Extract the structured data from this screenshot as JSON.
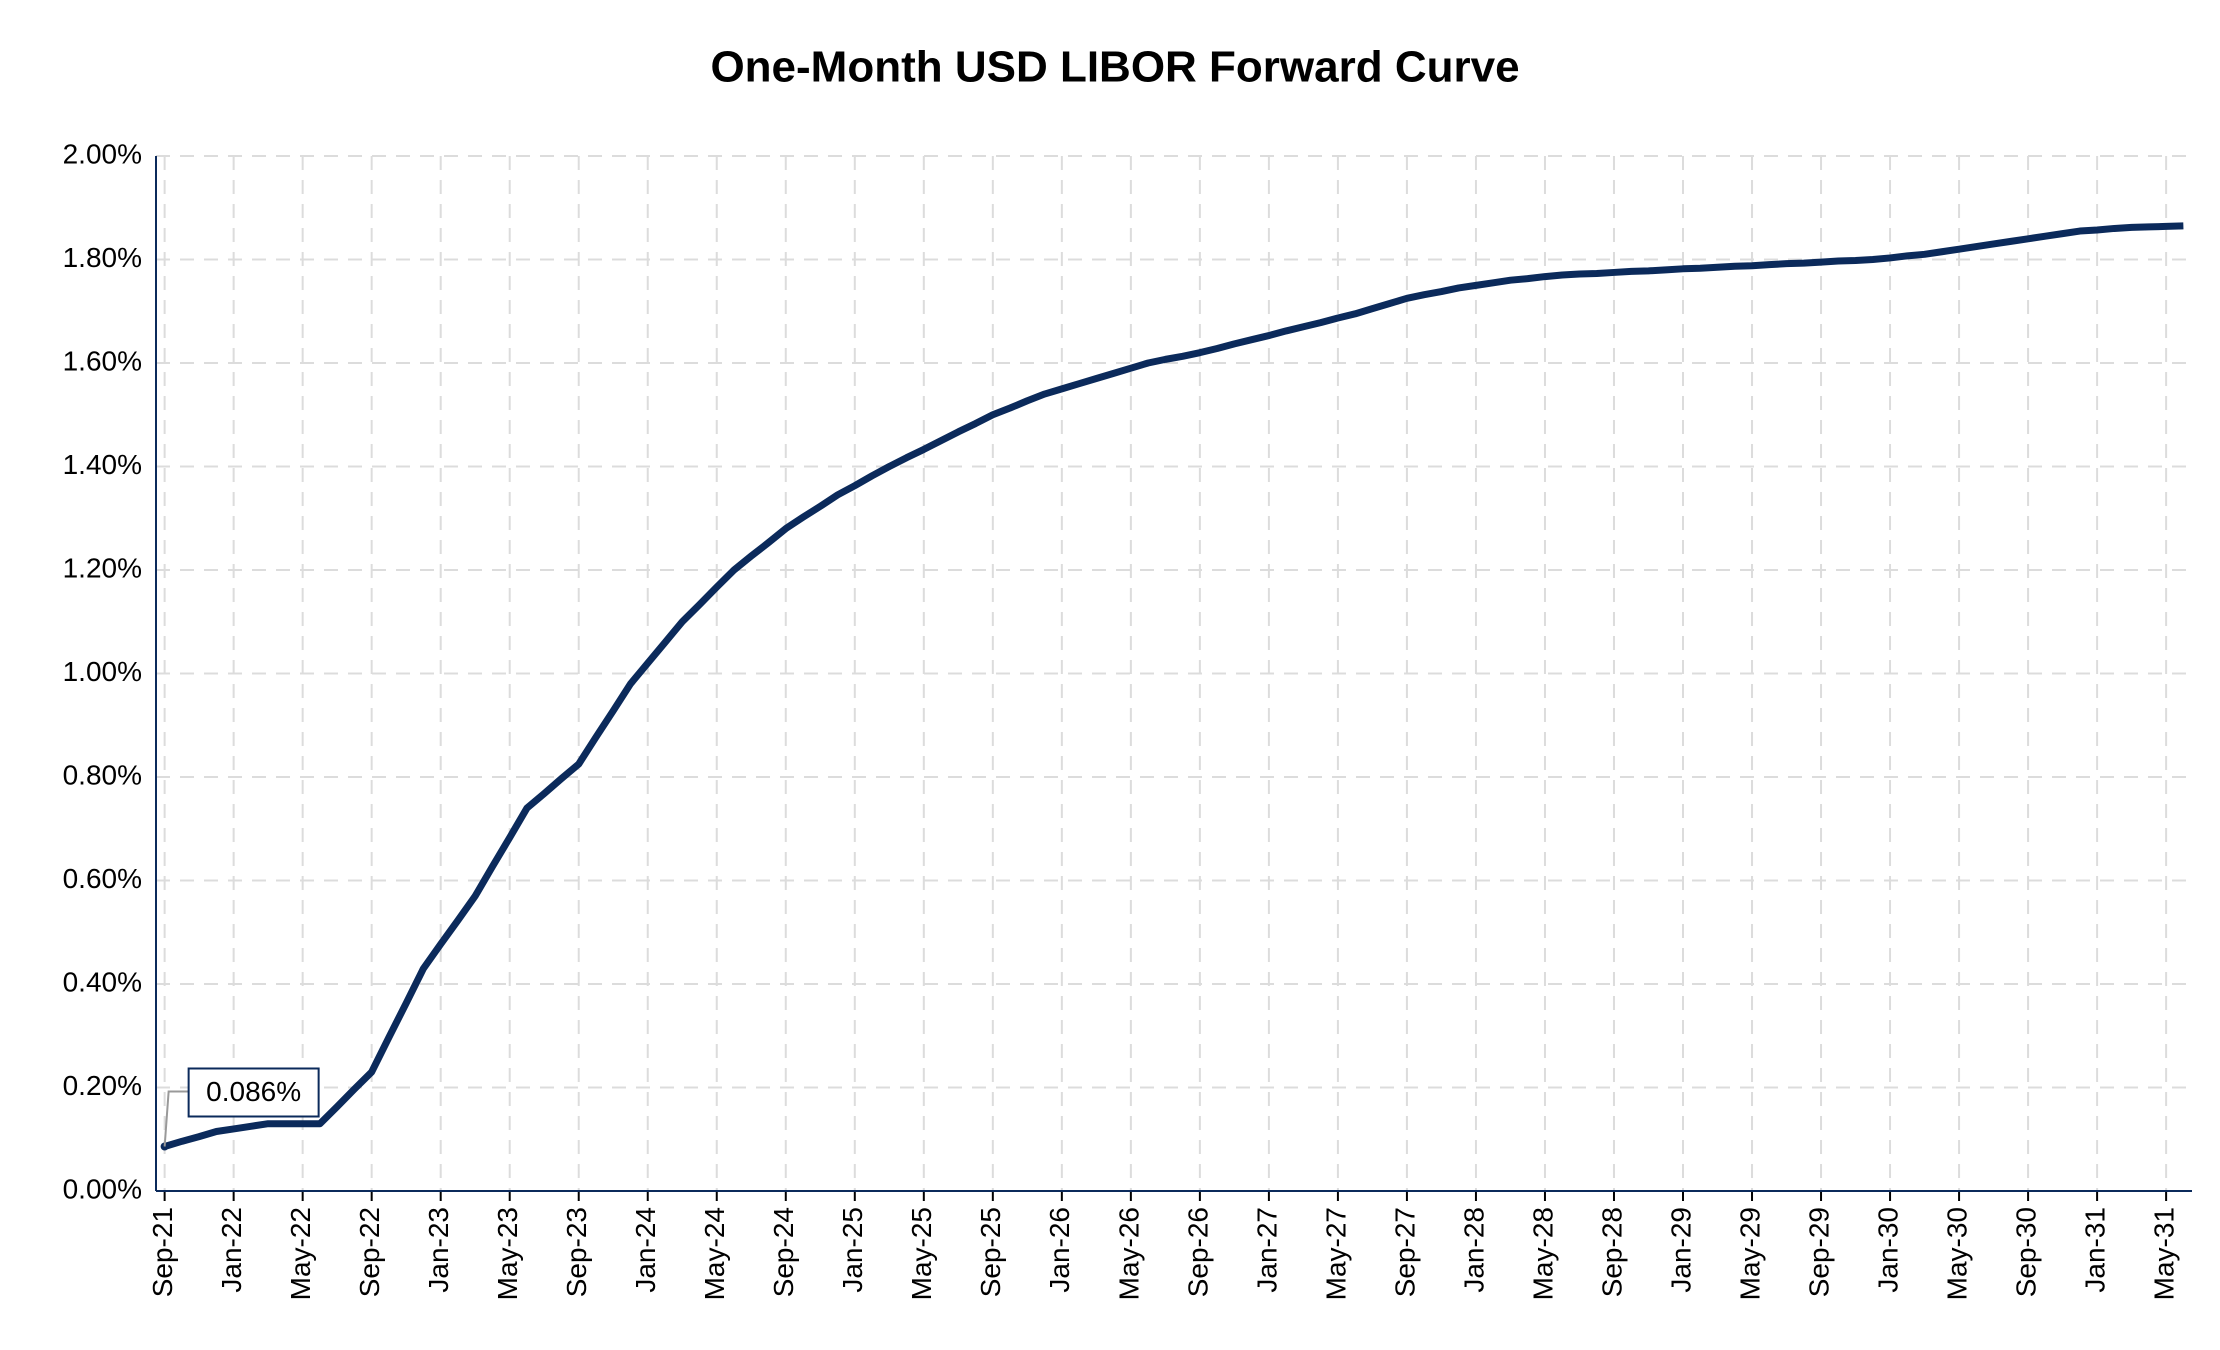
{
  "chart_data": {
    "type": "line",
    "title": "One-Month USD LIBOR Forward Curve",
    "categories": [
      "Sep-21",
      null,
      null,
      null,
      "Jan-22",
      null,
      null,
      null,
      "May-22",
      null,
      null,
      null,
      "Sep-22",
      null,
      null,
      null,
      "Jan-23",
      null,
      null,
      null,
      "May-23",
      null,
      null,
      null,
      "Sep-23",
      null,
      null,
      null,
      "Jan-24",
      null,
      null,
      null,
      "May-24",
      null,
      null,
      null,
      "Sep-24",
      null,
      null,
      null,
      "Jan-25",
      null,
      null,
      null,
      "May-25",
      null,
      null,
      null,
      "Sep-25",
      null,
      null,
      null,
      "Jan-26",
      null,
      null,
      null,
      "May-26",
      null,
      null,
      null,
      "Sep-26",
      null,
      null,
      null,
      "Jan-27",
      null,
      null,
      null,
      "May-27",
      null,
      null,
      null,
      "Sep-27",
      null,
      null,
      null,
      "Jan-28",
      null,
      null,
      null,
      "May-28",
      null,
      null,
      null,
      "Sep-28",
      null,
      null,
      null,
      "Jan-29",
      null,
      null,
      null,
      "May-29",
      null,
      null,
      null,
      "Sep-29",
      null,
      null,
      null,
      "Jan-30",
      null,
      null,
      null,
      "May-30",
      null,
      null,
      null,
      "Sep-30",
      null,
      null,
      null,
      "Jan-31",
      null,
      null,
      null,
      "May-31",
      null
    ],
    "series": [
      {
        "name": "One-Month USD LIBOR",
        "color": "#0b2a5b",
        "values": [
          0.086,
          0.096,
          0.105,
          0.115,
          0.12,
          0.125,
          0.13,
          0.13,
          0.13,
          0.13,
          0.163,
          0.197,
          0.23,
          0.297,
          0.363,
          0.43,
          0.477,
          0.523,
          0.57,
          0.627,
          0.683,
          0.74,
          0.768,
          0.797,
          0.825,
          0.877,
          0.928,
          0.98,
          1.02,
          1.06,
          1.1,
          1.133,
          1.167,
          1.2,
          1.227,
          1.253,
          1.28,
          1.302,
          1.323,
          1.345,
          1.363,
          1.382,
          1.4,
          1.417,
          1.433,
          1.45,
          1.467,
          1.483,
          1.5,
          1.513,
          1.527,
          1.54,
          1.55,
          1.56,
          1.57,
          1.58,
          1.59,
          1.6,
          1.607,
          1.613,
          1.62,
          1.628,
          1.637,
          1.645,
          1.653,
          1.662,
          1.67,
          1.678,
          1.687,
          1.695,
          1.705,
          1.715,
          1.725,
          1.732,
          1.738,
          1.745,
          1.75,
          1.755,
          1.76,
          1.763,
          1.767,
          1.77,
          1.772,
          1.773,
          1.775,
          1.777,
          1.778,
          1.78,
          1.782,
          1.783,
          1.785,
          1.787,
          1.788,
          1.79,
          1.792,
          1.793,
          1.795,
          1.797,
          1.798,
          1.8,
          1.803,
          1.807,
          1.81,
          1.815,
          1.82,
          1.825,
          1.83,
          1.835,
          1.84,
          1.845,
          1.85,
          1.855,
          1.857,
          1.86,
          1.862,
          1.863,
          1.864,
          1.865
        ]
      }
    ],
    "annotation": {
      "text": "0.086%",
      "value": 0.086
    },
    "ylim": [
      0,
      2
    ],
    "yticks": [
      {
        "value": 0,
        "label": "0.00%"
      },
      {
        "value": 0.2,
        "label": "0.20%"
      },
      {
        "value": 0.4,
        "label": "0.40%"
      },
      {
        "value": 0.6,
        "label": "0.60%"
      },
      {
        "value": 0.8,
        "label": "0.80%"
      },
      {
        "value": 1,
        "label": "1.00%"
      },
      {
        "value": 1.2,
        "label": "1.20%"
      },
      {
        "value": 1.4,
        "label": "1.40%"
      },
      {
        "value": 1.6,
        "label": "1.60%"
      },
      {
        "value": 1.8,
        "label": "1.80%"
      },
      {
        "value": 2,
        "label": "2.00%"
      }
    ],
    "grid": true
  }
}
